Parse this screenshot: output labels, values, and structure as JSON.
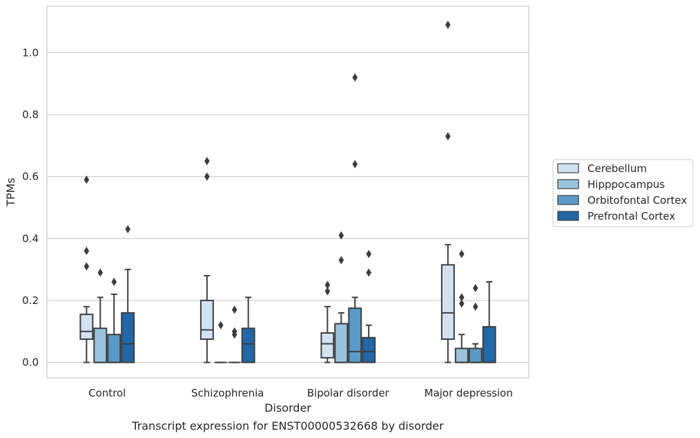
{
  "chart_data": {
    "type": "box",
    "title": "",
    "xlabel": "Disorder",
    "ylabel": "TPMs",
    "caption": "Transcript expression for ENST00000532668 by disorder",
    "ylim": [
      -0.05,
      1.15
    ],
    "yticks": [
      "0.0",
      "0.2",
      "0.4",
      "0.6",
      "0.8",
      "1.0"
    ],
    "categories": [
      "Control",
      "Schizophrenia",
      "Bipolar disorder",
      "Major depression"
    ],
    "grid": "horizontal",
    "legend_position": "right",
    "series": [
      {
        "name": "Cerebellum",
        "color": "#d3e2f1",
        "boxes": [
          {
            "whislo": 0.0,
            "q1": 0.075,
            "med": 0.1,
            "q3": 0.155,
            "whishi": 0.18,
            "fliers": [
              0.59,
              0.36,
              0.31
            ]
          },
          {
            "whislo": 0.0,
            "q1": 0.075,
            "med": 0.105,
            "q3": 0.2,
            "whishi": 0.28,
            "fliers": [
              0.65,
              0.6
            ]
          },
          {
            "whislo": 0.0,
            "q1": 0.015,
            "med": 0.06,
            "q3": 0.095,
            "whishi": 0.18,
            "fliers": [
              0.25,
              0.23
            ]
          },
          {
            "whislo": 0.0,
            "q1": 0.075,
            "med": 0.16,
            "q3": 0.315,
            "whishi": 0.38,
            "fliers": [
              1.09,
              0.73
            ]
          }
        ]
      },
      {
        "name": "Hipppocampus",
        "color": "#9ac4de",
        "boxes": [
          {
            "whislo": 0.0,
            "q1": 0.0,
            "med": 0.0,
            "q3": 0.11,
            "whishi": 0.21,
            "fliers": [
              0.29
            ]
          },
          {
            "whislo": 0.0,
            "q1": 0.0,
            "med": 0.0,
            "q3": 0.0,
            "whishi": 0.0,
            "fliers": [
              0.12
            ]
          },
          {
            "whislo": 0.0,
            "q1": 0.0,
            "med": 0.0,
            "q3": 0.125,
            "whishi": 0.16,
            "fliers": [
              0.41,
              0.33
            ]
          },
          {
            "whislo": 0.0,
            "q1": 0.0,
            "med": 0.0,
            "q3": 0.045,
            "whishi": 0.09,
            "fliers": [
              0.35,
              0.21,
              0.19
            ]
          }
        ]
      },
      {
        "name": "Orbitofontal Cortex",
        "color": "#5a9ac8",
        "boxes": [
          {
            "whislo": 0.0,
            "q1": 0.0,
            "med": 0.0,
            "q3": 0.09,
            "whishi": 0.22,
            "fliers": [
              0.26
            ]
          },
          {
            "whislo": 0.0,
            "q1": 0.0,
            "med": 0.0,
            "q3": 0.0,
            "whishi": 0.0,
            "fliers": [
              0.17,
              0.1,
              0.09
            ]
          },
          {
            "whislo": 0.0,
            "q1": 0.0,
            "med": 0.035,
            "q3": 0.175,
            "whishi": 0.21,
            "fliers": [
              0.92,
              0.64
            ]
          },
          {
            "whislo": 0.0,
            "q1": 0.0,
            "med": 0.0,
            "q3": 0.045,
            "whishi": 0.06,
            "fliers": [
              0.24,
              0.18
            ]
          }
        ]
      },
      {
        "name": "Prefrontal Cortex",
        "color": "#2267a8",
        "boxes": [
          {
            "whislo": 0.0,
            "q1": 0.0,
            "med": 0.06,
            "q3": 0.16,
            "whishi": 0.3,
            "fliers": [
              0.43
            ]
          },
          {
            "whislo": 0.0,
            "q1": 0.0,
            "med": 0.06,
            "q3": 0.11,
            "whishi": 0.21,
            "fliers": []
          },
          {
            "whislo": 0.0,
            "q1": 0.0,
            "med": 0.035,
            "q3": 0.08,
            "whishi": 0.12,
            "fliers": [
              0.35,
              0.29
            ]
          },
          {
            "whislo": 0.0,
            "q1": 0.0,
            "med": 0.0,
            "q3": 0.115,
            "whishi": 0.26,
            "fliers": []
          }
        ]
      }
    ]
  }
}
